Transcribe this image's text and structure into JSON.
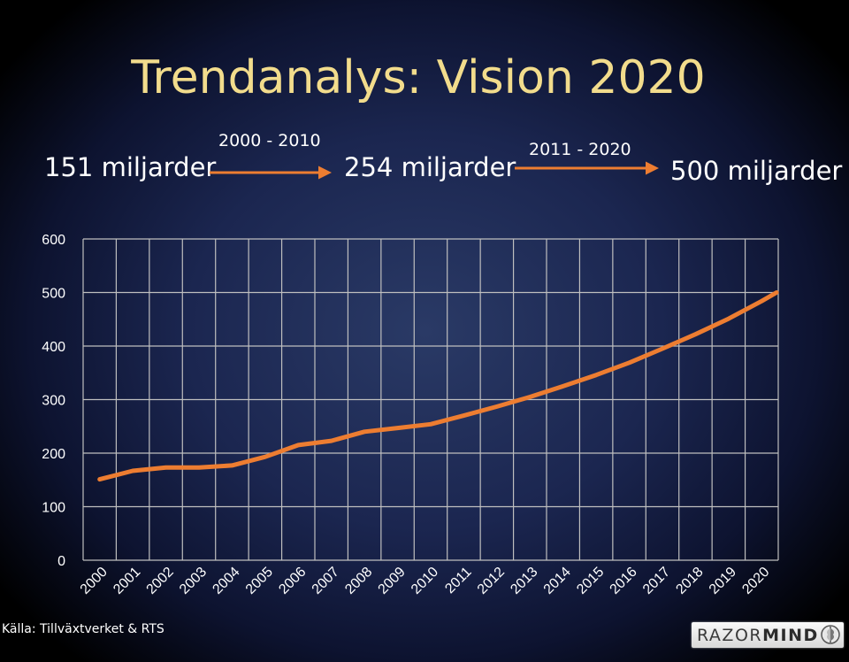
{
  "header": {
    "title": "Trendanalys: Vision 2020",
    "amount_start": "151 miljarder",
    "amount_mid": "254 miljarder",
    "amount_end": "500 miljarder",
    "period_1": "2000 - 2010",
    "period_2": "2011 - 2020"
  },
  "footer": {
    "source": "Källa: Tillväxtverket & RTS",
    "logo_regular": "RAZOR",
    "logo_bold": "MIND"
  },
  "colors": {
    "title": "#f2dc8c",
    "line": "#ed7d31",
    "grid": "#bfbfbf",
    "arrow": "#ed7d31"
  },
  "icons": {
    "arrow_1": "arrow-right-icon",
    "arrow_2": "arrow-right-icon",
    "logo_mark": "razormind-logo-icon"
  },
  "chart_data": {
    "type": "line",
    "title": "",
    "xlabel": "",
    "ylabel": "",
    "categories": [
      "2000",
      "2001",
      "2002",
      "2003",
      "2004",
      "2005",
      "2006",
      "2007",
      "2008",
      "2009",
      "2010",
      "2011",
      "2012",
      "2013",
      "2014",
      "2015",
      "2016",
      "2017",
      "2018",
      "2019",
      "2020"
    ],
    "series": [
      {
        "values": [
          151,
          167,
          173,
          173,
          177,
          193,
          215,
          223,
          240,
          247,
          254,
          270,
          287,
          305,
          325,
          346,
          369,
          395,
          422,
          451,
          484
        ],
        "end_value": 500
      }
    ],
    "yticks": [
      0,
      100,
      200,
      300,
      400,
      500,
      600
    ],
    "ylim": [
      0,
      600
    ],
    "grid": true,
    "legend": "none"
  }
}
